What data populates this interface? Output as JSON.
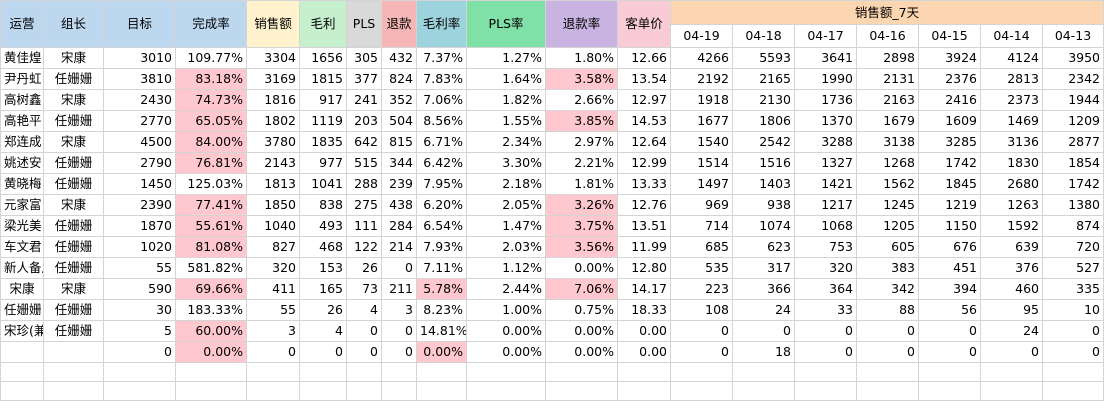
{
  "headers": {
    "ops": "运营",
    "leader": "组长",
    "target": "目标",
    "completion": "完成率",
    "sales": "销售额",
    "profit": "毛利",
    "pls": "PLS",
    "refund": "退款",
    "profit_rate": "毛利率",
    "pls_rate": "PLS率",
    "refund_rate": "退款率",
    "avg_price": "客单价",
    "sales7": "销售额_7天",
    "dates": [
      "04-19",
      "04-18",
      "04-17",
      "04-16",
      "04-15",
      "04-14",
      "04-13"
    ]
  },
  "rows": [
    {
      "ops": "黄佳煌",
      "leader": "宋康",
      "target": "3010",
      "completion": "109.77%",
      "completion_hl": false,
      "sales": "3304",
      "profit": "1656",
      "pls": "305",
      "refund": "432",
      "profit_rate": "7.37%",
      "profit_rate_hl": false,
      "pls_rate": "1.27%",
      "refund_rate": "1.80%",
      "refund_rate_hl": false,
      "avg_price": "12.66",
      "d": [
        "4266",
        "5593",
        "3641",
        "2898",
        "3924",
        "4124",
        "3950"
      ]
    },
    {
      "ops": "尹丹虹",
      "leader": "任姗姗",
      "target": "3810",
      "completion": "83.18%",
      "completion_hl": true,
      "sales": "3169",
      "profit": "1815",
      "pls": "377",
      "refund": "824",
      "profit_rate": "7.83%",
      "profit_rate_hl": false,
      "pls_rate": "1.64%",
      "refund_rate": "3.58%",
      "refund_rate_hl": true,
      "avg_price": "13.54",
      "d": [
        "2192",
        "2165",
        "1990",
        "2131",
        "2376",
        "2813",
        "2342"
      ]
    },
    {
      "ops": "高树鑫",
      "leader": "宋康",
      "target": "2430",
      "completion": "74.73%",
      "completion_hl": true,
      "sales": "1816",
      "profit": "917",
      "pls": "241",
      "refund": "352",
      "profit_rate": "7.06%",
      "profit_rate_hl": false,
      "pls_rate": "1.82%",
      "refund_rate": "2.66%",
      "refund_rate_hl": false,
      "avg_price": "12.97",
      "d": [
        "1918",
        "2130",
        "1736",
        "2163",
        "2416",
        "2373",
        "1944"
      ]
    },
    {
      "ops": "高艳平",
      "leader": "任姗姗",
      "target": "2770",
      "completion": "65.05%",
      "completion_hl": true,
      "sales": "1802",
      "profit": "1119",
      "pls": "203",
      "refund": "504",
      "profit_rate": "8.56%",
      "profit_rate_hl": false,
      "pls_rate": "1.55%",
      "refund_rate": "3.85%",
      "refund_rate_hl": true,
      "avg_price": "14.53",
      "d": [
        "1677",
        "1806",
        "1370",
        "1679",
        "1609",
        "1469",
        "1209"
      ]
    },
    {
      "ops": "郑连成",
      "leader": "宋康",
      "target": "4500",
      "completion": "84.00%",
      "completion_hl": true,
      "sales": "3780",
      "profit": "1835",
      "pls": "642",
      "refund": "815",
      "profit_rate": "6.71%",
      "profit_rate_hl": false,
      "pls_rate": "2.34%",
      "refund_rate": "2.97%",
      "refund_rate_hl": false,
      "avg_price": "12.64",
      "d": [
        "1540",
        "2542",
        "3288",
        "3138",
        "3285",
        "3136",
        "2877"
      ]
    },
    {
      "ops": "姚述安",
      "leader": "任姗姗",
      "target": "2790",
      "completion": "76.81%",
      "completion_hl": true,
      "sales": "2143",
      "profit": "977",
      "pls": "515",
      "refund": "344",
      "profit_rate": "6.42%",
      "profit_rate_hl": false,
      "pls_rate": "3.30%",
      "refund_rate": "2.21%",
      "refund_rate_hl": false,
      "avg_price": "12.99",
      "d": [
        "1514",
        "1516",
        "1327",
        "1268",
        "1742",
        "1830",
        "1854"
      ]
    },
    {
      "ops": "黄晓梅",
      "leader": "任姗姗",
      "target": "1450",
      "completion": "125.03%",
      "completion_hl": false,
      "sales": "1813",
      "profit": "1041",
      "pls": "288",
      "refund": "239",
      "profit_rate": "7.95%",
      "profit_rate_hl": false,
      "pls_rate": "2.18%",
      "refund_rate": "1.81%",
      "refund_rate_hl": false,
      "avg_price": "13.33",
      "d": [
        "1497",
        "1403",
        "1421",
        "1562",
        "1845",
        "2680",
        "1742"
      ]
    },
    {
      "ops": "元家富",
      "leader": "宋康",
      "target": "2390",
      "completion": "77.41%",
      "completion_hl": true,
      "sales": "1850",
      "profit": "838",
      "pls": "275",
      "refund": "438",
      "profit_rate": "6.20%",
      "profit_rate_hl": false,
      "pls_rate": "2.05%",
      "refund_rate": "3.26%",
      "refund_rate_hl": true,
      "avg_price": "12.76",
      "d": [
        "969",
        "938",
        "1217",
        "1245",
        "1219",
        "1263",
        "1380"
      ]
    },
    {
      "ops": "梁光美",
      "leader": "任姗姗",
      "target": "1870",
      "completion": "55.61%",
      "completion_hl": true,
      "sales": "1040",
      "profit": "493",
      "pls": "111",
      "refund": "284",
      "profit_rate": "6.54%",
      "profit_rate_hl": false,
      "pls_rate": "1.47%",
      "refund_rate": "3.75%",
      "refund_rate_hl": true,
      "avg_price": "13.51",
      "d": [
        "714",
        "1074",
        "1068",
        "1205",
        "1150",
        "1592",
        "874"
      ]
    },
    {
      "ops": "车文君",
      "leader": "任姗姗",
      "target": "1020",
      "completion": "81.08%",
      "completion_hl": true,
      "sales": "827",
      "profit": "468",
      "pls": "122",
      "refund": "214",
      "profit_rate": "7.93%",
      "profit_rate_hl": false,
      "pls_rate": "2.03%",
      "refund_rate": "3.56%",
      "refund_rate_hl": true,
      "avg_price": "11.99",
      "d": [
        "685",
        "623",
        "753",
        "605",
        "676",
        "639",
        "720"
      ]
    },
    {
      "ops": "新人备用",
      "leader": "任姗姗",
      "target": "55",
      "completion": "581.82%",
      "completion_hl": false,
      "sales": "320",
      "profit": "153",
      "pls": "26",
      "refund": "0",
      "profit_rate": "7.11%",
      "profit_rate_hl": false,
      "pls_rate": "1.12%",
      "refund_rate": "0.00%",
      "refund_rate_hl": false,
      "avg_price": "12.80",
      "d": [
        "535",
        "317",
        "320",
        "383",
        "451",
        "376",
        "527"
      ]
    },
    {
      "ops": "宋康",
      "leader": "宋康",
      "target": "590",
      "completion": "69.66%",
      "completion_hl": true,
      "sales": "411",
      "profit": "165",
      "pls": "73",
      "refund": "211",
      "profit_rate": "5.78%",
      "profit_rate_hl": true,
      "pls_rate": "2.44%",
      "refund_rate": "7.06%",
      "refund_rate_hl": true,
      "avg_price": "14.17",
      "d": [
        "223",
        "366",
        "364",
        "342",
        "394",
        "460",
        "335"
      ]
    },
    {
      "ops": "任姗姗",
      "leader": "任姗姗",
      "target": "30",
      "completion": "183.33%",
      "completion_hl": false,
      "sales": "55",
      "profit": "26",
      "pls": "4",
      "refund": "3",
      "profit_rate": "8.23%",
      "profit_rate_hl": false,
      "pls_rate": "1.00%",
      "refund_rate": "0.75%",
      "refund_rate_hl": false,
      "avg_price": "18.33",
      "d": [
        "108",
        "24",
        "33",
        "88",
        "56",
        "95",
        "10"
      ]
    },
    {
      "ops": "宋珍(兼)",
      "leader": "任姗姗",
      "target": "5",
      "completion": "60.00%",
      "completion_hl": true,
      "sales": "3",
      "profit": "4",
      "pls": "0",
      "refund": "0",
      "profit_rate": "14.81%",
      "profit_rate_hl": false,
      "pls_rate": "0.00%",
      "refund_rate": "0.00%",
      "refund_rate_hl": false,
      "avg_price": "0.00",
      "d": [
        "0",
        "0",
        "0",
        "0",
        "0",
        "24",
        "0"
      ]
    },
    {
      "ops": "",
      "leader": "",
      "target": "0",
      "completion": "0.00%",
      "completion_hl": true,
      "sales": "0",
      "profit": "0",
      "pls": "0",
      "refund": "0",
      "profit_rate": "0.00%",
      "profit_rate_hl": true,
      "pls_rate": "0.00%",
      "refund_rate": "0.00%",
      "refund_rate_hl": false,
      "avg_price": "0.00",
      "d": [
        "0",
        "18",
        "0",
        "0",
        "0",
        "0",
        "0"
      ]
    }
  ],
  "colors": {
    "header_blue": "#bdd7ee",
    "header_yellow": "#fff2cc",
    "header_green": "#c6efce",
    "header_gray": "#d9d9d9",
    "header_red": "#f4b6b6",
    "header_teal": "#9dd3dc",
    "header_light_green": "#7fe0a8",
    "header_purple": "#c9b3e0",
    "header_pink": "#f8cbd6",
    "header_orange": "#fbd6b0",
    "highlight": "#ffc7ce"
  }
}
